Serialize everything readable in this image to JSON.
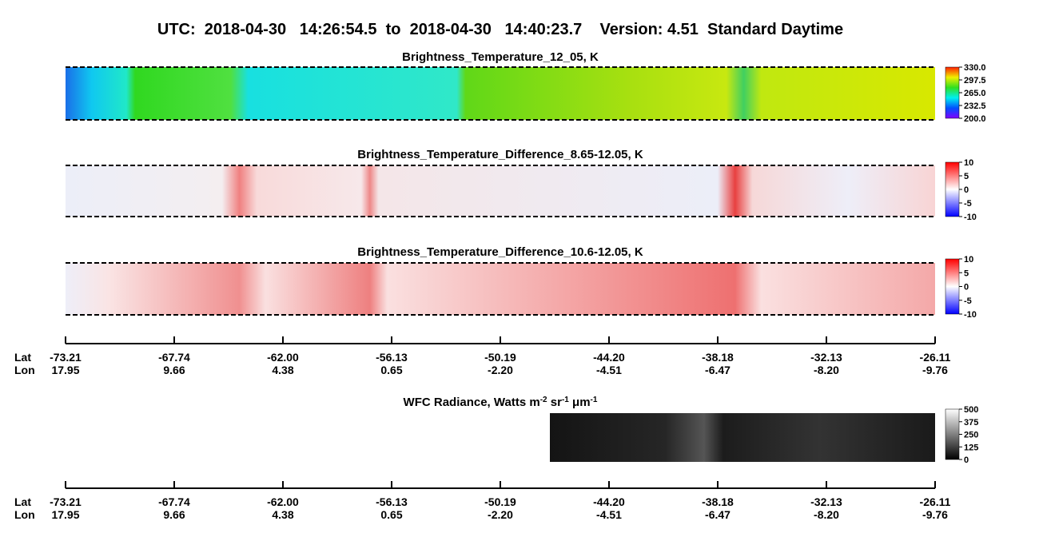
{
  "title": "UTC:  2018-04-30   14:26:54.5  to  2018-04-30   14:40:23.7    Version: 4.51  Standard Daytime",
  "chart_data": [
    {
      "type": "heatmap",
      "title": "Brightness_Temperature_12_05, K",
      "colorbar": {
        "lim": [
          200,
          330
        ],
        "ticks": [
          {
            "value": 330,
            "label": "330.0"
          },
          {
            "value": 297.5,
            "label": "297.5"
          },
          {
            "value": 265,
            "label": "265.0"
          },
          {
            "value": 232.5,
            "label": "232.5"
          },
          {
            "value": 200,
            "label": "200.0"
          }
        ]
      }
    },
    {
      "type": "heatmap",
      "title": "Brightness_Temperature_Difference_8.65-12.05, K",
      "colorbar": {
        "lim": [
          -10,
          10
        ],
        "ticks": [
          10,
          5,
          0,
          -5,
          -10
        ]
      }
    },
    {
      "type": "heatmap",
      "title": "Brightness_Temperature_Difference_10.6-12.05, K",
      "colorbar": {
        "lim": [
          -10,
          10
        ],
        "ticks": [
          10,
          5,
          0,
          -5,
          -10
        ]
      }
    },
    {
      "type": "heatmap",
      "title_parts": [
        "WFC Radiance, Watts m",
        "-2",
        " sr",
        "-1",
        " μm",
        "-1"
      ],
      "colorbar": {
        "lim": [
          0,
          500
        ],
        "ticks": [
          500,
          375,
          250,
          125,
          0
        ]
      }
    }
  ],
  "axis": {
    "lat_label": "Lat",
    "lon_label": "Lon",
    "lat": [
      -73.21,
      -67.74,
      {
        "value": -62,
        "label": "-62.00"
      },
      -56.13,
      -50.19,
      {
        "value": -44.2,
        "label": "-44.20"
      },
      -38.18,
      -32.13,
      -26.11
    ],
    "lon": [
      17.95,
      9.66,
      4.38,
      0.65,
      {
        "value": -2.2,
        "label": "-2.20"
      },
      -4.51,
      -6.47,
      {
        "value": -8.2,
        "label": "-8.20"
      },
      -9.76
    ]
  }
}
